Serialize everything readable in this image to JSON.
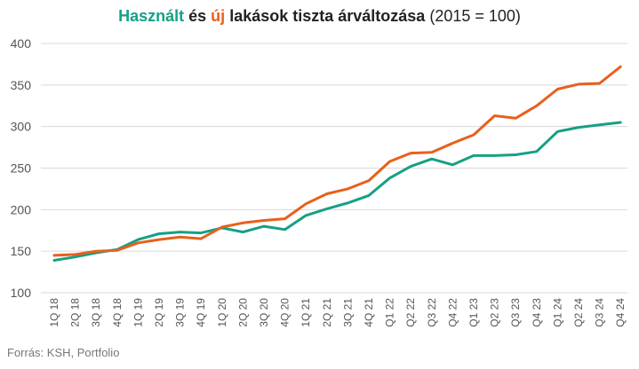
{
  "chart_data": {
    "type": "line",
    "title_parts": {
      "used": "Használt",
      "and": "és",
      "new": "új",
      "rest": "lakások tiszta árváltozása",
      "base": "(2015 = 100)"
    },
    "categories": [
      "1Q 18",
      "2Q 18",
      "3Q 18",
      "4Q 18",
      "1Q 19",
      "2Q 19",
      "3Q 19",
      "4Q 19",
      "1Q 20",
      "2Q 20",
      "3Q 20",
      "4Q 20",
      "1Q 21",
      "2Q 21",
      "3Q 21",
      "4Q 21",
      "Q1 22",
      "Q2 22",
      "Q3 22",
      "Q4 22",
      "Q1 23",
      "Q2 23",
      "Q3 23",
      "Q4 23",
      "Q1 24",
      "Q2 24",
      "Q3 24",
      "Q4 24"
    ],
    "series": [
      {
        "key": "used",
        "color": "#16a085",
        "values": [
          139,
          143,
          148,
          152,
          164,
          171,
          173,
          172,
          178,
          173,
          180,
          176,
          193,
          201,
          208,
          217,
          238,
          252,
          261,
          254,
          265,
          265,
          266,
          270,
          294,
          299,
          302,
          305
        ]
      },
      {
        "key": "new",
        "color": "#e8601c",
        "values": [
          145,
          146,
          150,
          151,
          160,
          164,
          167,
          165,
          179,
          184,
          187,
          189,
          207,
          219,
          225,
          235,
          258,
          268,
          269,
          280,
          290,
          313,
          310,
          325,
          345,
          351,
          352,
          372
        ]
      }
    ],
    "ylim": [
      100,
      400
    ],
    "yticks": [
      100,
      150,
      200,
      250,
      300,
      350,
      400
    ],
    "grid": "horizontal",
    "legend": "none"
  },
  "source": "Forrás: KSH, Portfolio"
}
